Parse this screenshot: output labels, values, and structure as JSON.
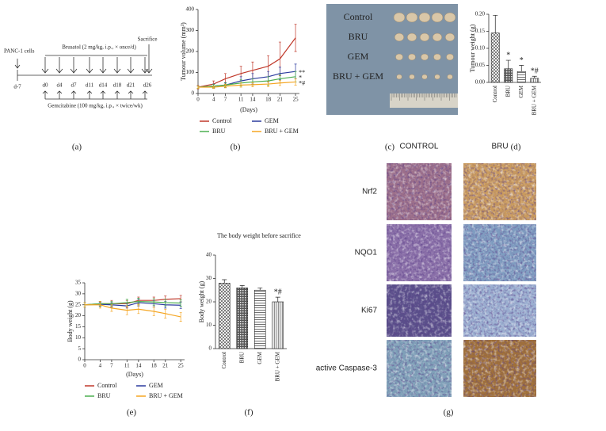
{
  "chart_data": [
    {
      "type": "line",
      "panel": "(b)",
      "ylabel": "Tumour volume (mm³)",
      "xlabel": "(Days)",
      "x": [
        0,
        4,
        7,
        11,
        14,
        18,
        21,
        25
      ],
      "xlim": [
        0,
        26
      ],
      "xticks": [
        0,
        4,
        7,
        11,
        14,
        18,
        21,
        25
      ],
      "ylim": [
        0,
        400
      ],
      "yticks": [
        0,
        100,
        200,
        300,
        400
      ],
      "series": [
        {
          "name": "Control",
          "color": "#c0392b",
          "values": [
            30,
            45,
            70,
            95,
            110,
            130,
            165,
            265
          ],
          "errors": [
            8,
            15,
            25,
            35,
            40,
            50,
            80,
            65
          ],
          "annotation": null
        },
        {
          "name": "GEM",
          "color": "#2b3a9e",
          "values": [
            30,
            35,
            40,
            60,
            70,
            80,
            95,
            105
          ],
          "errors": [
            6,
            10,
            12,
            20,
            25,
            25,
            30,
            35
          ],
          "annotation": "**"
        },
        {
          "name": "BRU",
          "color": "#4caf50",
          "values": [
            30,
            35,
            40,
            50,
            55,
            60,
            70,
            80
          ],
          "errors": [
            6,
            8,
            10,
            15,
            15,
            20,
            20,
            25
          ],
          "annotation": "*"
        },
        {
          "name": "BRU + GEM",
          "color": "#f5a623",
          "values": [
            30,
            30,
            35,
            40,
            42,
            45,
            50,
            55
          ],
          "errors": [
            5,
            6,
            8,
            10,
            10,
            12,
            12,
            15
          ],
          "annotation": "*#"
        }
      ]
    },
    {
      "type": "bar",
      "panel": "(d)",
      "ylabel": "Tumour weight (g)",
      "categories": [
        "Control",
        "BRU",
        "GEM",
        "BRU + GEM"
      ],
      "values": [
        0.145,
        0.04,
        0.032,
        0.012
      ],
      "errors": [
        0.052,
        0.025,
        0.018,
        0.006
      ],
      "annotations": [
        null,
        "*",
        "*",
        "*#"
      ],
      "ylim": [
        0,
        0.2
      ],
      "yticks": [
        {
          "value": 0,
          "label": "0.00"
        },
        {
          "value": 0.05,
          "label": "0.05"
        },
        {
          "value": 0.1,
          "label": "0.10"
        },
        {
          "value": 0.15,
          "label": "0.15"
        },
        {
          "value": 0.2,
          "label": "0.20"
        }
      ]
    },
    {
      "type": "line",
      "panel": "(e)",
      "ylabel": "Body weight (g)",
      "xlabel": "(Days)",
      "x": [
        0,
        4,
        7,
        11,
        14,
        18,
        21,
        25
      ],
      "xlim": [
        0,
        26
      ],
      "xticks": [
        0,
        4,
        7,
        11,
        14,
        18,
        21,
        25
      ],
      "ylim": [
        0,
        35
      ],
      "yticks": [
        0,
        5,
        10,
        15,
        20,
        25,
        30,
        35
      ],
      "series": [
        {
          "name": "Control",
          "color": "#c0392b",
          "values": [
            25,
            25.5,
            25.5,
            25.5,
            27,
            27,
            27.5,
            27.8
          ],
          "errors": [
            1,
            1,
            1.5,
            1.5,
            1.5,
            1.5,
            1.5,
            1.5
          ],
          "annotation": null
        },
        {
          "name": "GEM",
          "color": "#2b3a9e",
          "values": [
            25,
            25.2,
            25,
            24.5,
            26,
            25.5,
            25,
            24.8
          ],
          "errors": [
            1,
            1,
            1,
            1,
            1.5,
            1.5,
            1.5,
            1.5
          ],
          "annotation": null
        },
        {
          "name": "BRU",
          "color": "#4caf50",
          "values": [
            25,
            25.5,
            25.5,
            26,
            26.5,
            26.3,
            26,
            25.8
          ],
          "errors": [
            1,
            1,
            1,
            1.5,
            1.5,
            1.5,
            1.5,
            1.5
          ],
          "annotation": null
        },
        {
          "name": "BRU + GEM",
          "color": "#f5a623",
          "values": [
            25,
            25,
            23.5,
            22.5,
            23,
            22,
            21,
            19.5
          ],
          "errors": [
            1,
            1.5,
            1.5,
            2,
            2,
            2,
            2,
            2
          ],
          "annotation": null
        }
      ]
    },
    {
      "type": "bar",
      "panel": "(f)",
      "title": "The body weight before sacrifice",
      "ylabel": "Body weight (g)",
      "categories": [
        "Control",
        "BRU",
        "GEM",
        "BRU + GEM"
      ],
      "values": [
        28,
        26,
        25,
        20
      ],
      "errors": [
        1.5,
        1,
        1,
        2
      ],
      "annotations": [
        null,
        null,
        null,
        "*#"
      ],
      "ylim": [
        0,
        40
      ],
      "yticks": [
        0,
        10,
        20,
        30,
        40
      ]
    }
  ],
  "timeline": {
    "panel": "(a)",
    "cells": "PANC-1 cells",
    "brusatol": "Brusatol (2 mg/kg, i.p., × once/d)",
    "sacrifice": "Sacrifice",
    "days": [
      "d-7",
      "d0",
      "d4",
      "d7",
      "d11",
      "d14",
      "d18",
      "d21",
      "d26"
    ],
    "gemcitabine": "Gemcitabine (100 mg/kg, i.p., × twice/wk)"
  },
  "photo": {
    "panel": "(c)",
    "rows": [
      "Control",
      "BRU",
      "GEM",
      "BRU + GEM"
    ]
  },
  "histology": {
    "panel": "(g)",
    "columns": [
      "CONTROL",
      "BRU"
    ],
    "rows": [
      "Nrf2",
      "NQO1",
      "Ki67",
      "active Caspase-3"
    ]
  }
}
